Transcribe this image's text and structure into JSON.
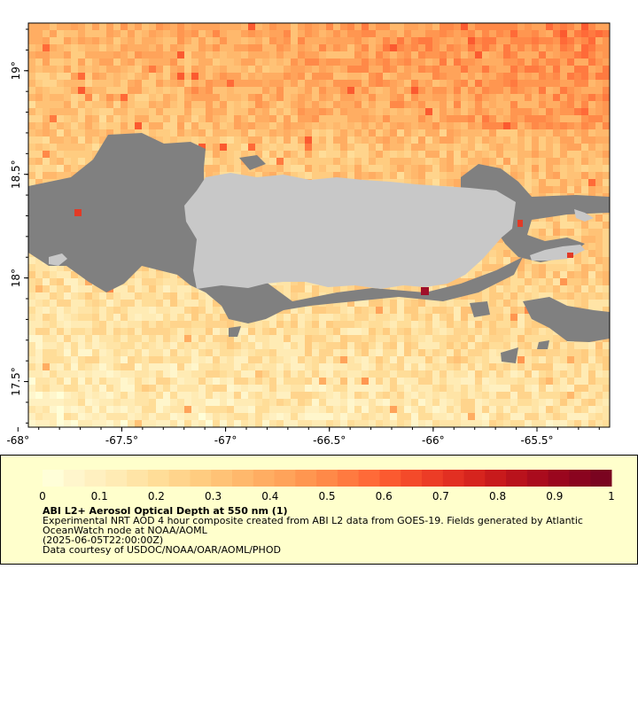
{
  "map": {
    "x_ticks": [
      {
        "lon": -68.0,
        "label": "-68°"
      },
      {
        "lon": -67.5,
        "label": "-67.5°"
      },
      {
        "lon": -67.0,
        "label": "-67°"
      },
      {
        "lon": -66.5,
        "label": "-66.5°"
      },
      {
        "lon": -66.0,
        "label": "-66°"
      },
      {
        "lon": -65.5,
        "label": "-65.5°"
      }
    ],
    "y_ticks": [
      {
        "lat": 19.0,
        "label": "19°"
      },
      {
        "lat": 18.5,
        "label": "18.5°"
      },
      {
        "lat": 18.0,
        "label": "18°"
      },
      {
        "lat": 17.5,
        "label": "17.5°"
      }
    ],
    "lon_range": [
      -67.95,
      -65.15
    ],
    "lat_range": [
      17.28,
      19.23
    ],
    "land_color": "#c8c8c8",
    "nodata_color": "#808080"
  },
  "legend": {
    "title": "ABI L2+ Aerosol Optical Depth at 550 nm (1)",
    "line1": "Experimental NRT AOD 4 hour composite created from ABI L2 data from GOES-19. Fields generated by Atlantic OceanWatch node at NOAA/AOML",
    "line2": "(2025-06-05T22:00:00Z)",
    "line3": "Data courtesy of USDOC/NOAA/OAR/AOML/PHOD",
    "labels": [
      "0",
      "0.1",
      "0.2",
      "0.3",
      "0.4",
      "0.5",
      "0.6",
      "0.7",
      "0.8",
      "0.9",
      "1"
    ],
    "colors": [
      "#fffed8",
      "#fff6cc",
      "#fff0c0",
      "#ffebb4",
      "#ffe4a6",
      "#ffdd98",
      "#ffd48c",
      "#ffcc80",
      "#ffc276",
      "#ffb86c",
      "#ffad62",
      "#ffa35a",
      "#ff9650",
      "#ff8948",
      "#ff7a40",
      "#ff6a38",
      "#fb5a30",
      "#f44a2a",
      "#ec3c26",
      "#e22f22",
      "#d6241e",
      "#c81a1c",
      "#b9121c",
      "#aa0b1d",
      "#9a061e",
      "#8a041f",
      "#7a0420"
    ]
  }
}
